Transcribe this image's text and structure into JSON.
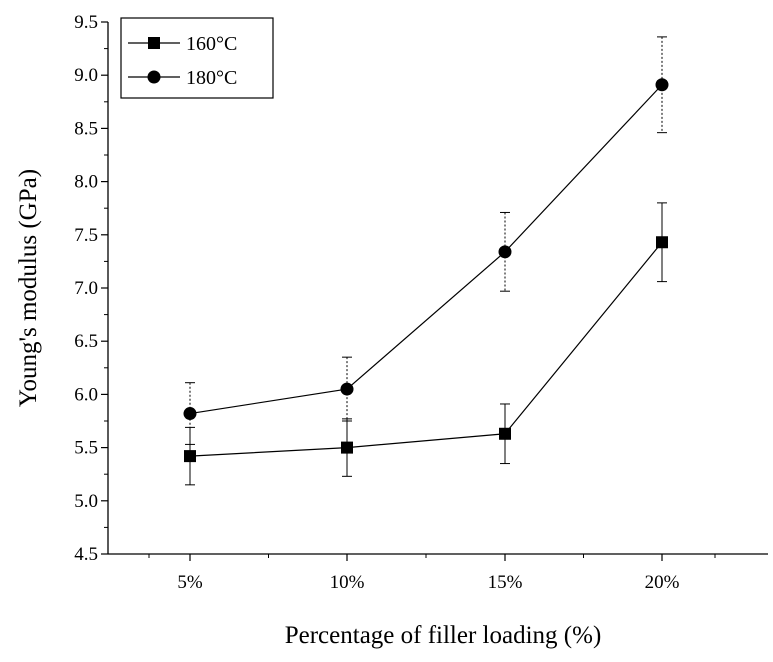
{
  "chart_data": {
    "type": "line",
    "xlabel": "Percentage of filler loading (%)",
    "ylabel": "Young's modulus (GPa)",
    "categories": [
      "5%",
      "10%",
      "15%",
      "20%"
    ],
    "ylim": [
      4.5,
      9.5
    ],
    "yticks": [
      "4.5",
      "5.0",
      "5.5",
      "6.0",
      "6.5",
      "7.0",
      "7.5",
      "8.0",
      "8.5",
      "9.0",
      "9.5"
    ],
    "legend_position": "top-left",
    "grid": false,
    "series": [
      {
        "name": "160°C",
        "marker": "square",
        "error_bar_style": "solid",
        "values": [
          5.42,
          5.5,
          5.63,
          7.43
        ],
        "errors": [
          0.27,
          0.27,
          0.28,
          0.37
        ]
      },
      {
        "name": "180°C",
        "marker": "circle",
        "error_bar_style": "dotted",
        "values": [
          5.82,
          6.05,
          7.34,
          8.91
        ],
        "errors": [
          0.29,
          0.3,
          0.37,
          0.45
        ]
      }
    ]
  }
}
